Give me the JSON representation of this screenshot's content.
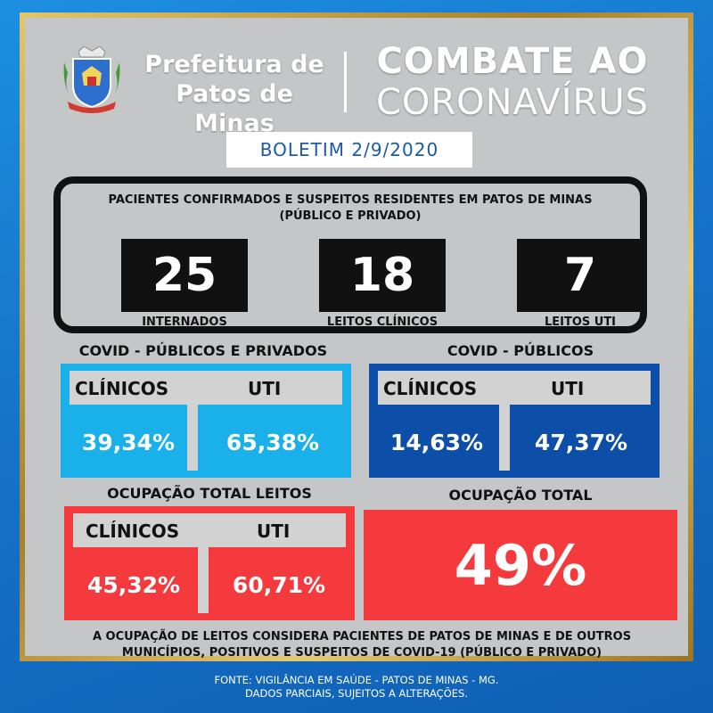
{
  "header": {
    "prefeitura_line1": "Prefeitura de",
    "prefeitura_line2": "Patos de Minas",
    "combate_line1": "COMBATE AO",
    "combate_line2": "CORONAVÍRUS"
  },
  "boletim": "BOLETIM 2/9/2020",
  "patients": {
    "title_line1": "PACIENTES CONFIRMADOS E SUSPEITOS RESIDENTES EM PATOS DE MINAS",
    "title_line2": "(PÚBLICO E PRIVADO)",
    "stats": [
      {
        "value": "25",
        "label": "INTERNADOS"
      },
      {
        "value": "18",
        "label": "LEITOS CLÍNICOS"
      },
      {
        "value": "7",
        "label": "LEITOS UTI"
      }
    ]
  },
  "covid_publicos_privados": {
    "title": "COVID - PÚBLICOS E PRIVADOS",
    "clinicos_label": "CLÍNICOS",
    "uti_label": "UTI",
    "clinicos_value": "39,34%",
    "uti_value": "65,38%",
    "color": "#1ab0ea"
  },
  "covid_publicos": {
    "title": "COVID - PÚBLICOS",
    "clinicos_label": "CLÍNICOS",
    "uti_label": "UTI",
    "clinicos_value": "14,63%",
    "uti_value": "47,37%",
    "color": "#0d4ea8"
  },
  "ocupacao_total_leitos": {
    "title": "OCUPAÇÃO TOTAL LEITOS",
    "clinicos_label": "CLÍNICOS",
    "uti_label": "UTI",
    "clinicos_value": "45,32%",
    "uti_value": "60,71%",
    "color": "#f53a3e"
  },
  "ocupacao_total": {
    "title": "OCUPAÇÃO TOTAL",
    "value": "49%"
  },
  "note_line1": "A OCUPAÇÃO DE LEITOS CONSIDERA PACIENTES DE PATOS DE MINAS E DE OUTROS",
  "note_line2": "MUNICÍPIOS, POSITIVOS E SUSPEITOS DE COVID-19 (PÚBLICO E PRIVADO)",
  "fonte_line1": "FONTE: VIGILÂNCIA EM SAÚDE - PATOS DE MINAS - MG.",
  "fonte_line2": "DADOS PARCIAIS, SUJEITOS A ALTERAÇÕES."
}
